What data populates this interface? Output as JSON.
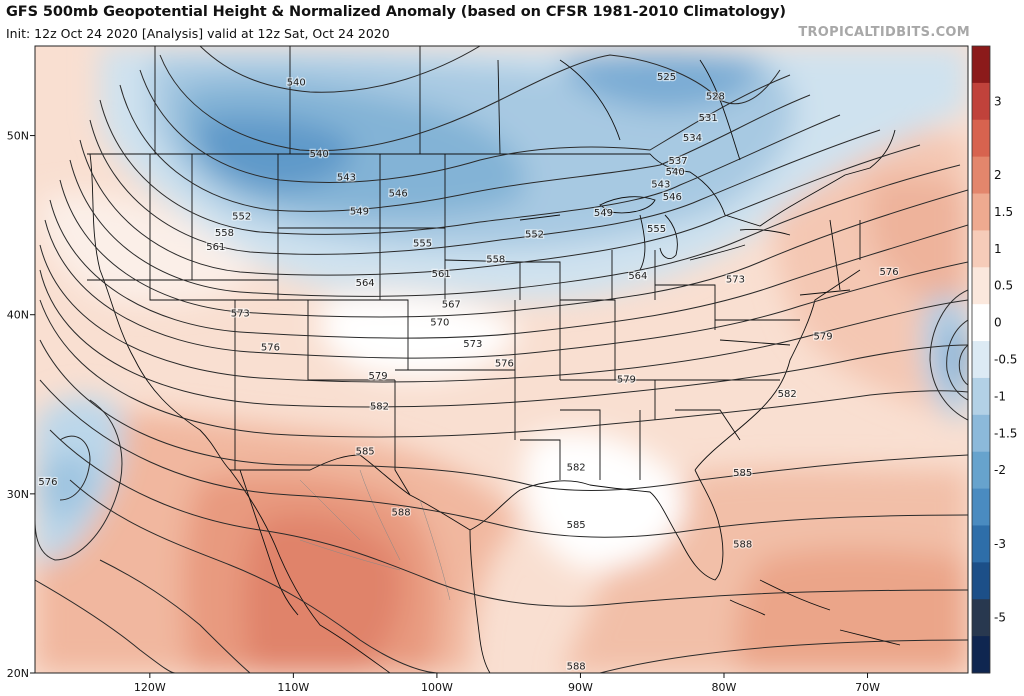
{
  "header": {
    "title": "GFS 500mb Geopotential Height & Normalized Anomaly (based on CFSR 1981-2010 Climatology)",
    "subtitle": "Init: 12z Oct 24 2020  [Analysis]   valid at 12z Sat, Oct 24 2020",
    "credit": "TROPICALTIDBITS.COM"
  },
  "map": {
    "lon_range": [
      -128,
      -63
    ],
    "lat_range": [
      20,
      55
    ],
    "lat_ticks": [
      {
        "lat": 50,
        "label": "50N"
      },
      {
        "lat": 40,
        "label": "40N"
      },
      {
        "lat": 30,
        "label": "30N"
      },
      {
        "lat": 20,
        "label": "20N"
      }
    ],
    "lon_ticks": [
      {
        "lon": -120,
        "label": "120W"
      },
      {
        "lon": -110,
        "label": "110W"
      },
      {
        "lon": -100,
        "label": "100W"
      },
      {
        "lon": -90,
        "label": "90W"
      },
      {
        "lon": -80,
        "label": "80W"
      },
      {
        "lon": -70,
        "label": "70W"
      }
    ],
    "contour_labels": [
      {
        "t": "540",
        "lon": -109.8,
        "lat": 53.0
      },
      {
        "t": "540",
        "lon": -108.2,
        "lat": 49.0
      },
      {
        "t": "543",
        "lon": -106.3,
        "lat": 47.7
      },
      {
        "t": "546",
        "lon": -102.7,
        "lat": 46.8
      },
      {
        "t": "549",
        "lon": -105.4,
        "lat": 45.8
      },
      {
        "t": "552",
        "lon": -113.6,
        "lat": 45.5
      },
      {
        "t": "558",
        "lon": -114.8,
        "lat": 44.6
      },
      {
        "t": "561",
        "lon": -115.4,
        "lat": 43.8
      },
      {
        "t": "555",
        "lon": -101.0,
        "lat": 44.0
      },
      {
        "t": "552",
        "lon": -93.2,
        "lat": 44.5
      },
      {
        "t": "558",
        "lon": -95.9,
        "lat": 43.1
      },
      {
        "t": "561",
        "lon": -99.7,
        "lat": 42.3
      },
      {
        "t": "564",
        "lon": -105.0,
        "lat": 41.8
      },
      {
        "t": "567",
        "lon": -99.0,
        "lat": 40.6
      },
      {
        "t": "570",
        "lon": -99.8,
        "lat": 39.6
      },
      {
        "t": "573",
        "lon": -113.7,
        "lat": 40.1
      },
      {
        "t": "573",
        "lon": -97.5,
        "lat": 38.4
      },
      {
        "t": "576",
        "lon": -111.6,
        "lat": 38.2
      },
      {
        "t": "576",
        "lon": -95.3,
        "lat": 37.3
      },
      {
        "t": "579",
        "lon": -104.1,
        "lat": 36.6
      },
      {
        "t": "582",
        "lon": -104.0,
        "lat": 34.9
      },
      {
        "t": "585",
        "lon": -105.0,
        "lat": 32.4
      },
      {
        "t": "588",
        "lon": -102.5,
        "lat": 29.0
      },
      {
        "t": "582",
        "lon": -90.3,
        "lat": 31.5
      },
      {
        "t": "585",
        "lon": -90.3,
        "lat": 28.3
      },
      {
        "t": "588",
        "lon": -90.3,
        "lat": 20.4
      },
      {
        "t": "579",
        "lon": -86.8,
        "lat": 36.4
      },
      {
        "t": "564",
        "lon": -86.0,
        "lat": 42.2
      },
      {
        "t": "555",
        "lon": -84.7,
        "lat": 44.8
      },
      {
        "t": "549",
        "lon": -88.4,
        "lat": 45.7
      },
      {
        "t": "546",
        "lon": -83.6,
        "lat": 46.6
      },
      {
        "t": "543",
        "lon": -84.4,
        "lat": 47.3
      },
      {
        "t": "540",
        "lon": -83.4,
        "lat": 48.0
      },
      {
        "t": "537",
        "lon": -83.2,
        "lat": 48.6
      },
      {
        "t": "534",
        "lon": -82.2,
        "lat": 49.9
      },
      {
        "t": "531",
        "lon": -81.1,
        "lat": 51.0
      },
      {
        "t": "528",
        "lon": -80.6,
        "lat": 52.2
      },
      {
        "t": "525",
        "lon": -84.0,
        "lat": 53.3
      },
      {
        "t": "573",
        "lon": -79.2,
        "lat": 42.0
      },
      {
        "t": "576",
        "lon": -68.5,
        "lat": 42.4
      },
      {
        "t": "579",
        "lon": -73.1,
        "lat": 38.8
      },
      {
        "t": "582",
        "lon": -75.6,
        "lat": 35.6
      },
      {
        "t": "585",
        "lon": -78.7,
        "lat": 31.2
      },
      {
        "t": "588",
        "lon": -78.7,
        "lat": 27.2
      },
      {
        "t": "576",
        "lon": -127.1,
        "lat": 30.7
      }
    ]
  },
  "colorbar": {
    "labels": [
      "3",
      "2",
      "1.5",
      "1",
      "0.5",
      "0",
      "-0.5",
      "-1",
      "-1.5",
      "-2",
      "-3",
      "-5"
    ],
    "colors": [
      "#8b1a1a",
      "#c0423b",
      "#d7634f",
      "#e3866c",
      "#eeaa90",
      "#f6ccb9",
      "#fbe8dd",
      "#ffffff",
      "#dceaf4",
      "#b3d1e6",
      "#8cb9da",
      "#67a3cd",
      "#4a8bc0",
      "#2e6ea9",
      "#1c4f88",
      "#28384f",
      "#0f2650"
    ]
  }
}
